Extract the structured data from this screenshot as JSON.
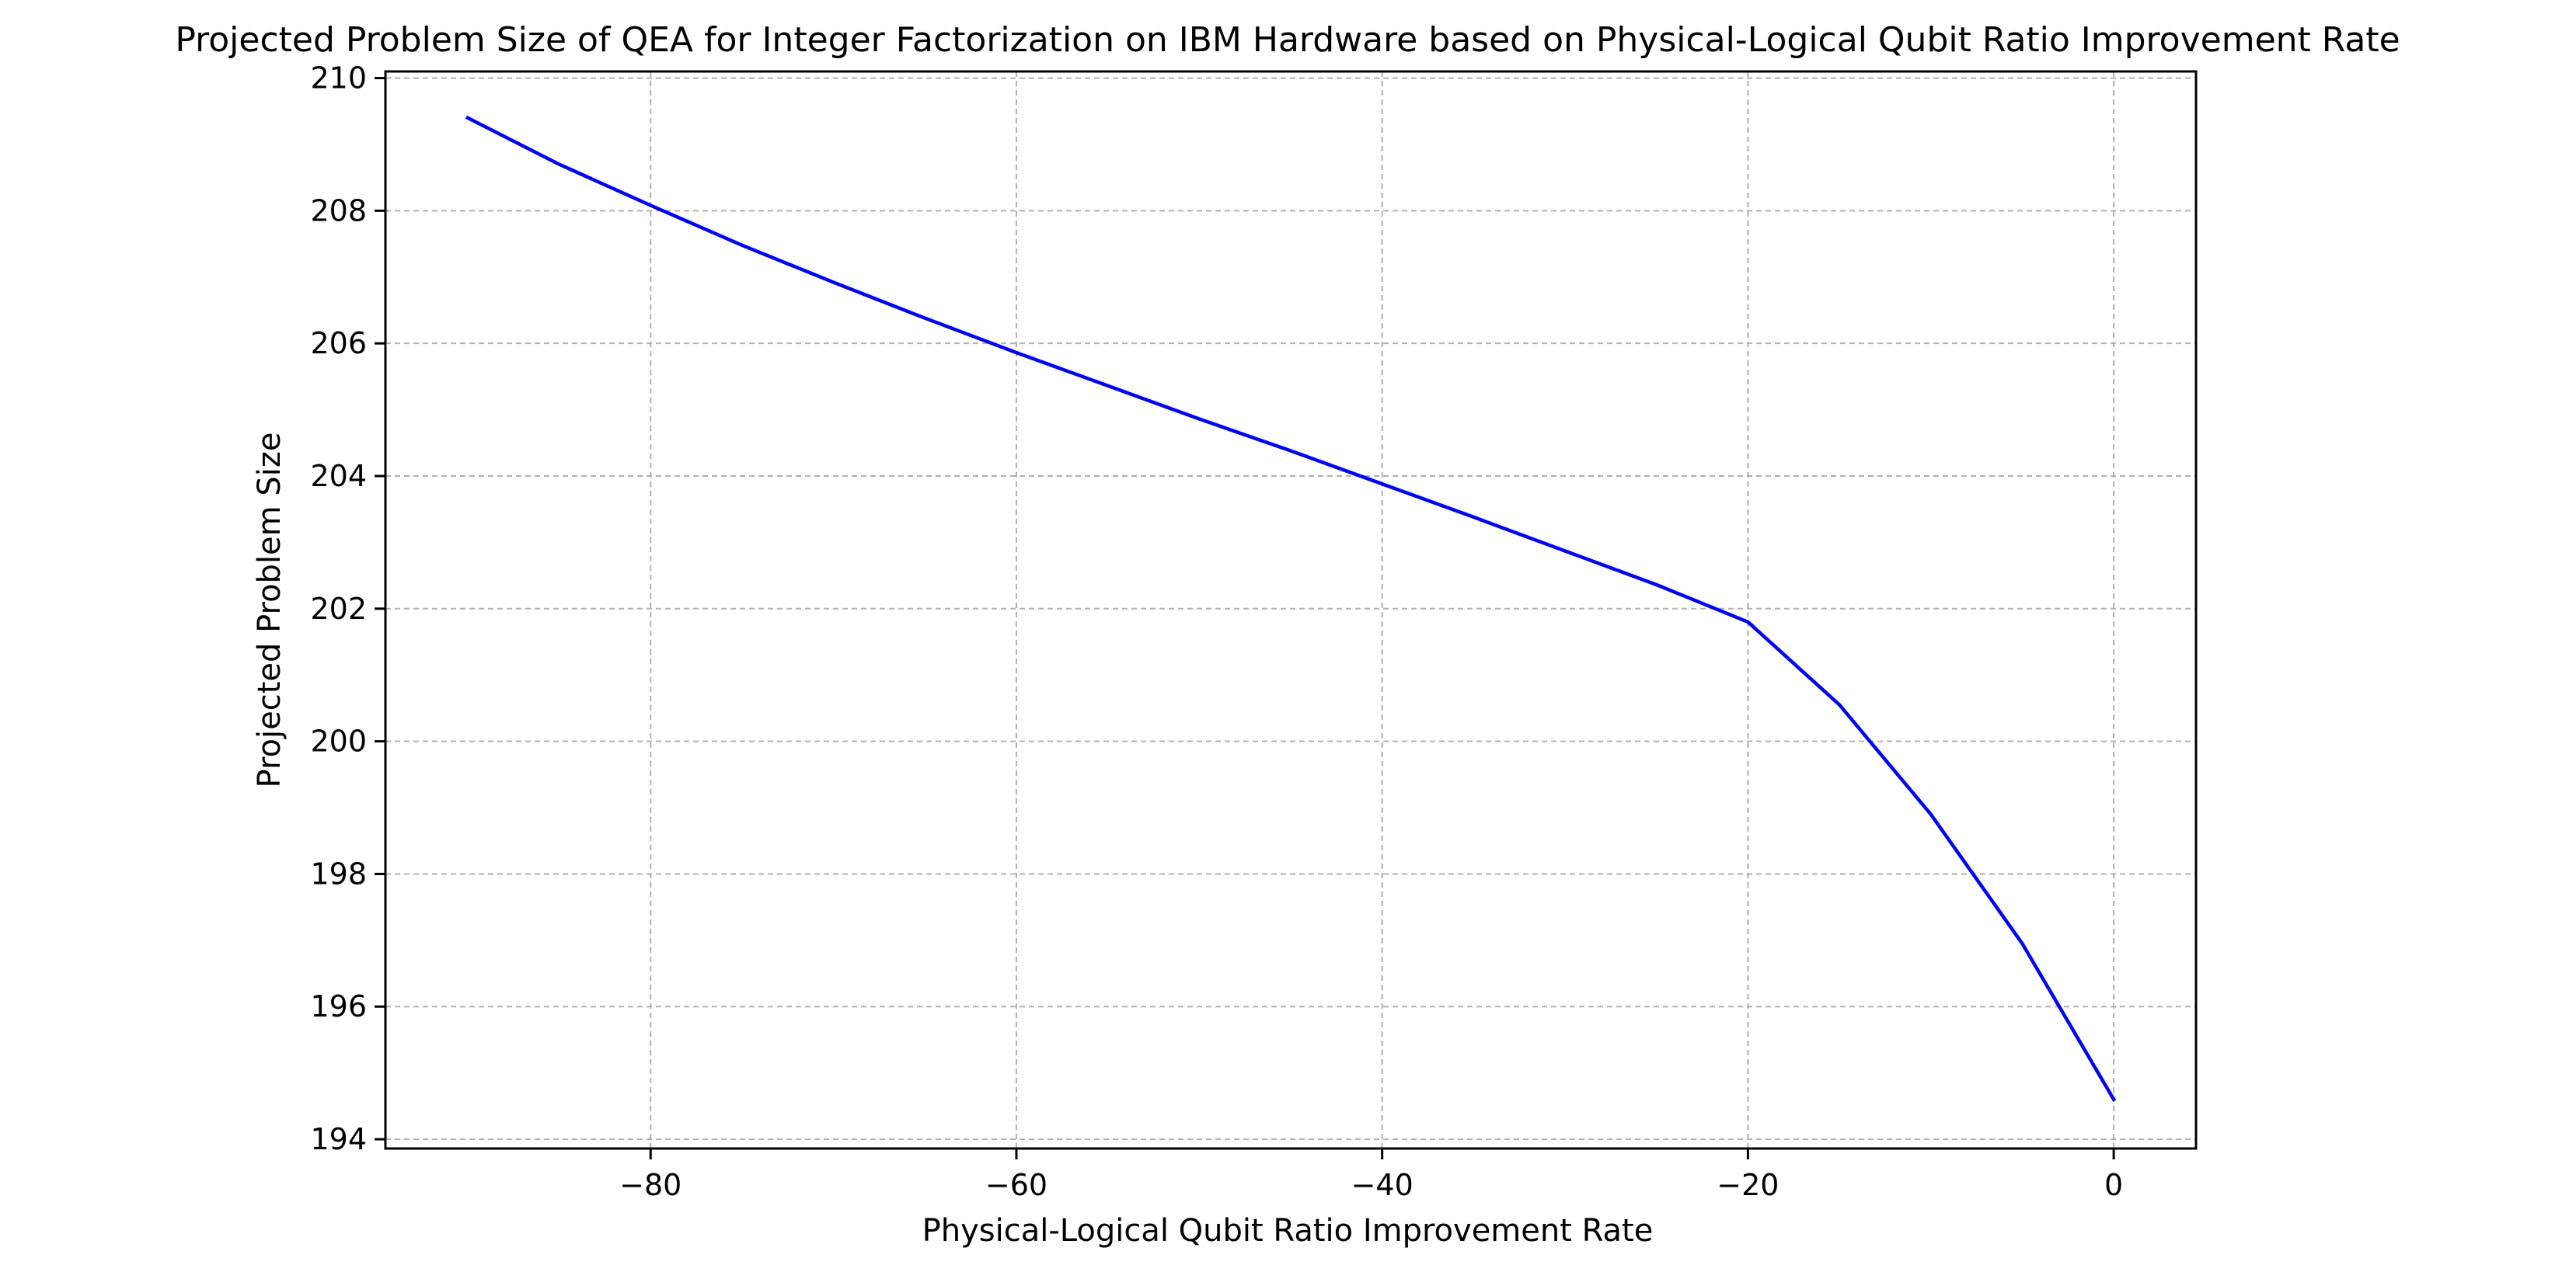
{
  "chart_data": {
    "type": "line",
    "title": "Projected Problem Size of QEA for Integer Factorization on IBM Hardware based on Physical-Logical Qubit Ratio Improvement Rate",
    "xlabel": "Physical-Logical Qubit Ratio Improvement Rate",
    "ylabel": "Projected Problem Size",
    "xlim": [
      -94.5,
      4.5
    ],
    "ylim": [
      193.86,
      210.1
    ],
    "xticks": [
      -80,
      -60,
      -40,
      -20,
      0
    ],
    "xtick_labels": [
      "−80",
      "−60",
      "−40",
      "−20",
      "0"
    ],
    "yticks": [
      194,
      196,
      198,
      200,
      202,
      204,
      206,
      208,
      210
    ],
    "ytick_labels": [
      "194",
      "196",
      "198",
      "200",
      "202",
      "204",
      "206",
      "208",
      "210"
    ],
    "grid": true,
    "series": [
      {
        "color": "#0000ff",
        "x": [
          -90,
          -85,
          -80,
          -75,
          -70,
          -65,
          -60,
          -55,
          -50,
          -45,
          -40,
          -35,
          -30,
          -25,
          -20,
          -15,
          -10,
          -5,
          0
        ],
        "y": [
          209.4,
          208.7,
          208.08,
          207.48,
          206.92,
          206.38,
          205.86,
          205.36,
          204.86,
          204.38,
          203.88,
          203.38,
          202.87,
          202.36,
          201.8,
          200.55,
          198.9,
          196.95,
          194.6
        ]
      }
    ]
  }
}
